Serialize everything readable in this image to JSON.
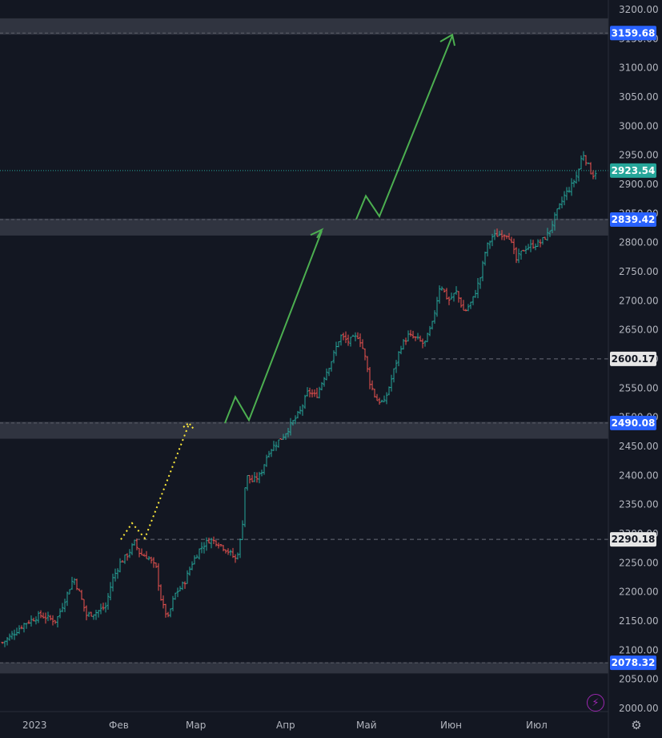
{
  "chart_data": {
    "type": "ohlc",
    "y_axis": {
      "ticks": [
        "3200.00",
        "3150.00",
        "3100.00",
        "3050.00",
        "3000.00",
        "2950.00",
        "2900.00",
        "2850.00",
        "2800.00",
        "2750.00",
        "2700.00",
        "2650.00",
        "2600.00",
        "2550.00",
        "2500.00",
        "2450.00",
        "2400.00",
        "2350.00",
        "2300.00",
        "2250.00",
        "2200.00",
        "2150.00",
        "2100.00",
        "2050.00",
        "2000.00"
      ],
      "range": [
        1990,
        3210
      ]
    },
    "x_axis": {
      "labels": [
        "2023",
        "Фев",
        "Мар",
        "Апр",
        "Май",
        "Июн",
        "Июл"
      ]
    },
    "last_price": {
      "label": "2923.54",
      "value": 2923.54,
      "color": "#26a69a"
    },
    "levels": [
      {
        "label": "3159.68",
        "value": 3159.68,
        "kind": "zone",
        "zone": [
          3157,
          3185
        ],
        "color": "#2962ff"
      },
      {
        "label": "2839.42",
        "value": 2839.42,
        "kind": "zone",
        "zone": [
          2812,
          2841
        ],
        "color": "#2962ff"
      },
      {
        "label": "2600.17",
        "value": 2600.17,
        "kind": "dashed",
        "color": "#d1d4dc"
      },
      {
        "label": "2490.08",
        "value": 2490.08,
        "kind": "zone",
        "zone": [
          2463,
          2492
        ],
        "color": "#2962ff"
      },
      {
        "label": "2290.18",
        "value": 2290.18,
        "kind": "dashed",
        "color": "#d1d4dc"
      },
      {
        "label": "2078.32",
        "value": 2078.32,
        "kind": "zone",
        "zone": [
          2060,
          2079
        ],
        "color": "#2962ff"
      }
    ],
    "up_color": "#26a69a",
    "down_color": "#ef5350",
    "projection_color": "#4caf50",
    "yellow_projection_color": "#ffeb3b",
    "grid": false
  },
  "controls": {
    "flash_icon": "lightning-icon",
    "settings_icon": "gear-icon"
  }
}
